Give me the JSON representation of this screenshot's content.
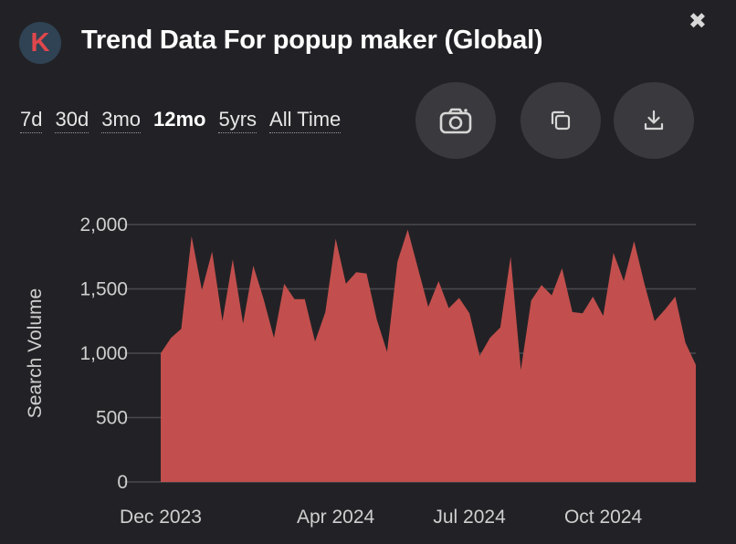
{
  "header": {
    "logo_letter": "K",
    "title": "Trend Data For popup maker (Global)",
    "close_glyph": "✖"
  },
  "ranges": [
    {
      "label": "7d",
      "active": false
    },
    {
      "label": "30d",
      "active": false
    },
    {
      "label": "3mo",
      "active": false
    },
    {
      "label": "12mo",
      "active": true
    },
    {
      "label": "5yrs",
      "active": false
    },
    {
      "label": "All Time",
      "active": false
    }
  ],
  "actions": {
    "screenshot_icon": "camera-icon",
    "copy_icon": "copy-icon",
    "download_icon": "download-icon"
  },
  "colors": {
    "background": "#222226",
    "fill": "#c24f4d",
    "grid": "#4a4a4e",
    "axis_text": "#cfcfcf"
  },
  "chart_data": {
    "type": "area",
    "ylabel": "Search Volume",
    "xlabel": "",
    "ylim": [
      0,
      2000
    ],
    "yticks": [
      {
        "value": 0,
        "label": "0"
      },
      {
        "value": 500,
        "label": "500"
      },
      {
        "value": 1000,
        "label": "1,000"
      },
      {
        "value": 1500,
        "label": "1,500"
      },
      {
        "value": 2000,
        "label": "2,000"
      }
    ],
    "xticks": [
      {
        "index": 0,
        "label": "Dec 2023"
      },
      {
        "index": 17,
        "label": "Apr 2024"
      },
      {
        "index": 30,
        "label": "Jul 2024"
      },
      {
        "index": 43,
        "label": "Oct 2024"
      }
    ],
    "grid": true,
    "series": [
      {
        "values": [
          1000,
          1120,
          1190,
          1910,
          1490,
          1790,
          1250,
          1730,
          1230,
          1680,
          1420,
          1120,
          1540,
          1420,
          1420,
          1090,
          1320,
          1890,
          1540,
          1630,
          1620,
          1260,
          1010,
          1710,
          1960,
          1660,
          1360,
          1560,
          1350,
          1430,
          1310,
          980,
          1120,
          1200,
          1750,
          870,
          1410,
          1530,
          1450,
          1660,
          1320,
          1310,
          1440,
          1290,
          1780,
          1560,
          1870,
          1540,
          1250,
          1340,
          1440,
          1080,
          910
        ]
      }
    ]
  }
}
